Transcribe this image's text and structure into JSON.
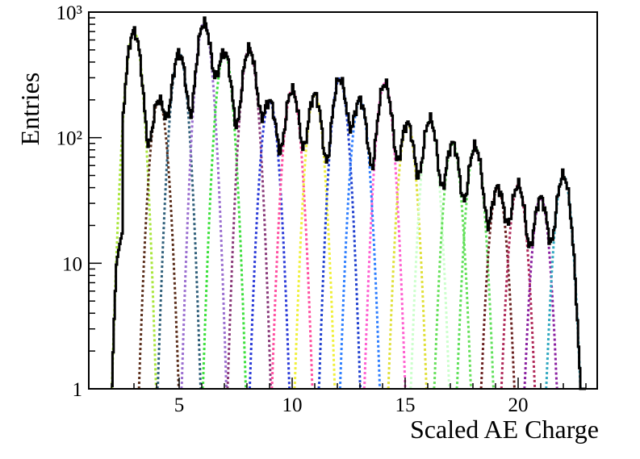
{
  "chart_data": {
    "type": "line",
    "title": "",
    "xlabel": "Scaled AE Charge",
    "ylabel": "Entries",
    "xlim": [
      1.0,
      23.5
    ],
    "ylim": [
      1,
      1000
    ],
    "yscale": "log",
    "grid": false,
    "legend": "none",
    "x_ticks": [
      5,
      10,
      15,
      20
    ],
    "x_tick_labels": [
      "5",
      "10",
      "15",
      "20"
    ],
    "y_ticks": [
      1,
      10,
      100,
      1000
    ],
    "y_tick_labels": [
      "1",
      "10",
      "10²",
      "10³"
    ],
    "data_color": "#000000",
    "histogram_start": 2.0,
    "histogram_end": 23.0,
    "peaks": [
      {
        "x": 3.0,
        "height": 700,
        "color": "#a8e63a"
      },
      {
        "x": 4.1,
        "height": 200,
        "color": "#5a2d1a"
      },
      {
        "x": 5.0,
        "height": 470,
        "color": "#2f5f7a"
      },
      {
        "x": 6.1,
        "height": 820,
        "color": "#9b6fd0"
      },
      {
        "x": 7.0,
        "height": 480,
        "color": "#3adf3a"
      },
      {
        "x": 8.1,
        "height": 510,
        "color": "#8a3a7a"
      },
      {
        "x": 9.0,
        "height": 195,
        "color": "#2a3ad8"
      },
      {
        "x": 10.0,
        "height": 240,
        "color": "#ff4fa0"
      },
      {
        "x": 11.0,
        "height": 220,
        "color": "#f0f03a"
      },
      {
        "x": 12.1,
        "height": 295,
        "color": "#1f3fcf"
      },
      {
        "x": 13.0,
        "height": 200,
        "color": "#2f7fff"
      },
      {
        "x": 14.1,
        "height": 270,
        "color": "#ff5fd0"
      },
      {
        "x": 15.1,
        "height": 130,
        "color": "#e0e03a"
      },
      {
        "x": 16.1,
        "height": 140,
        "color": "#ccffcc"
      },
      {
        "x": 17.1,
        "height": 90,
        "color": "#66e05a"
      },
      {
        "x": 18.1,
        "height": 85,
        "color": "#5fe05a"
      },
      {
        "x": 19.1,
        "height": 40,
        "color": "#6a1f1f"
      },
      {
        "x": 20.0,
        "height": 42,
        "color": "#b02a5a"
      },
      {
        "x": 21.0,
        "height": 33,
        "color": "#8a1fa0"
      },
      {
        "x": 22.0,
        "height": 50,
        "color": "#2fa8c0"
      }
    ]
  }
}
